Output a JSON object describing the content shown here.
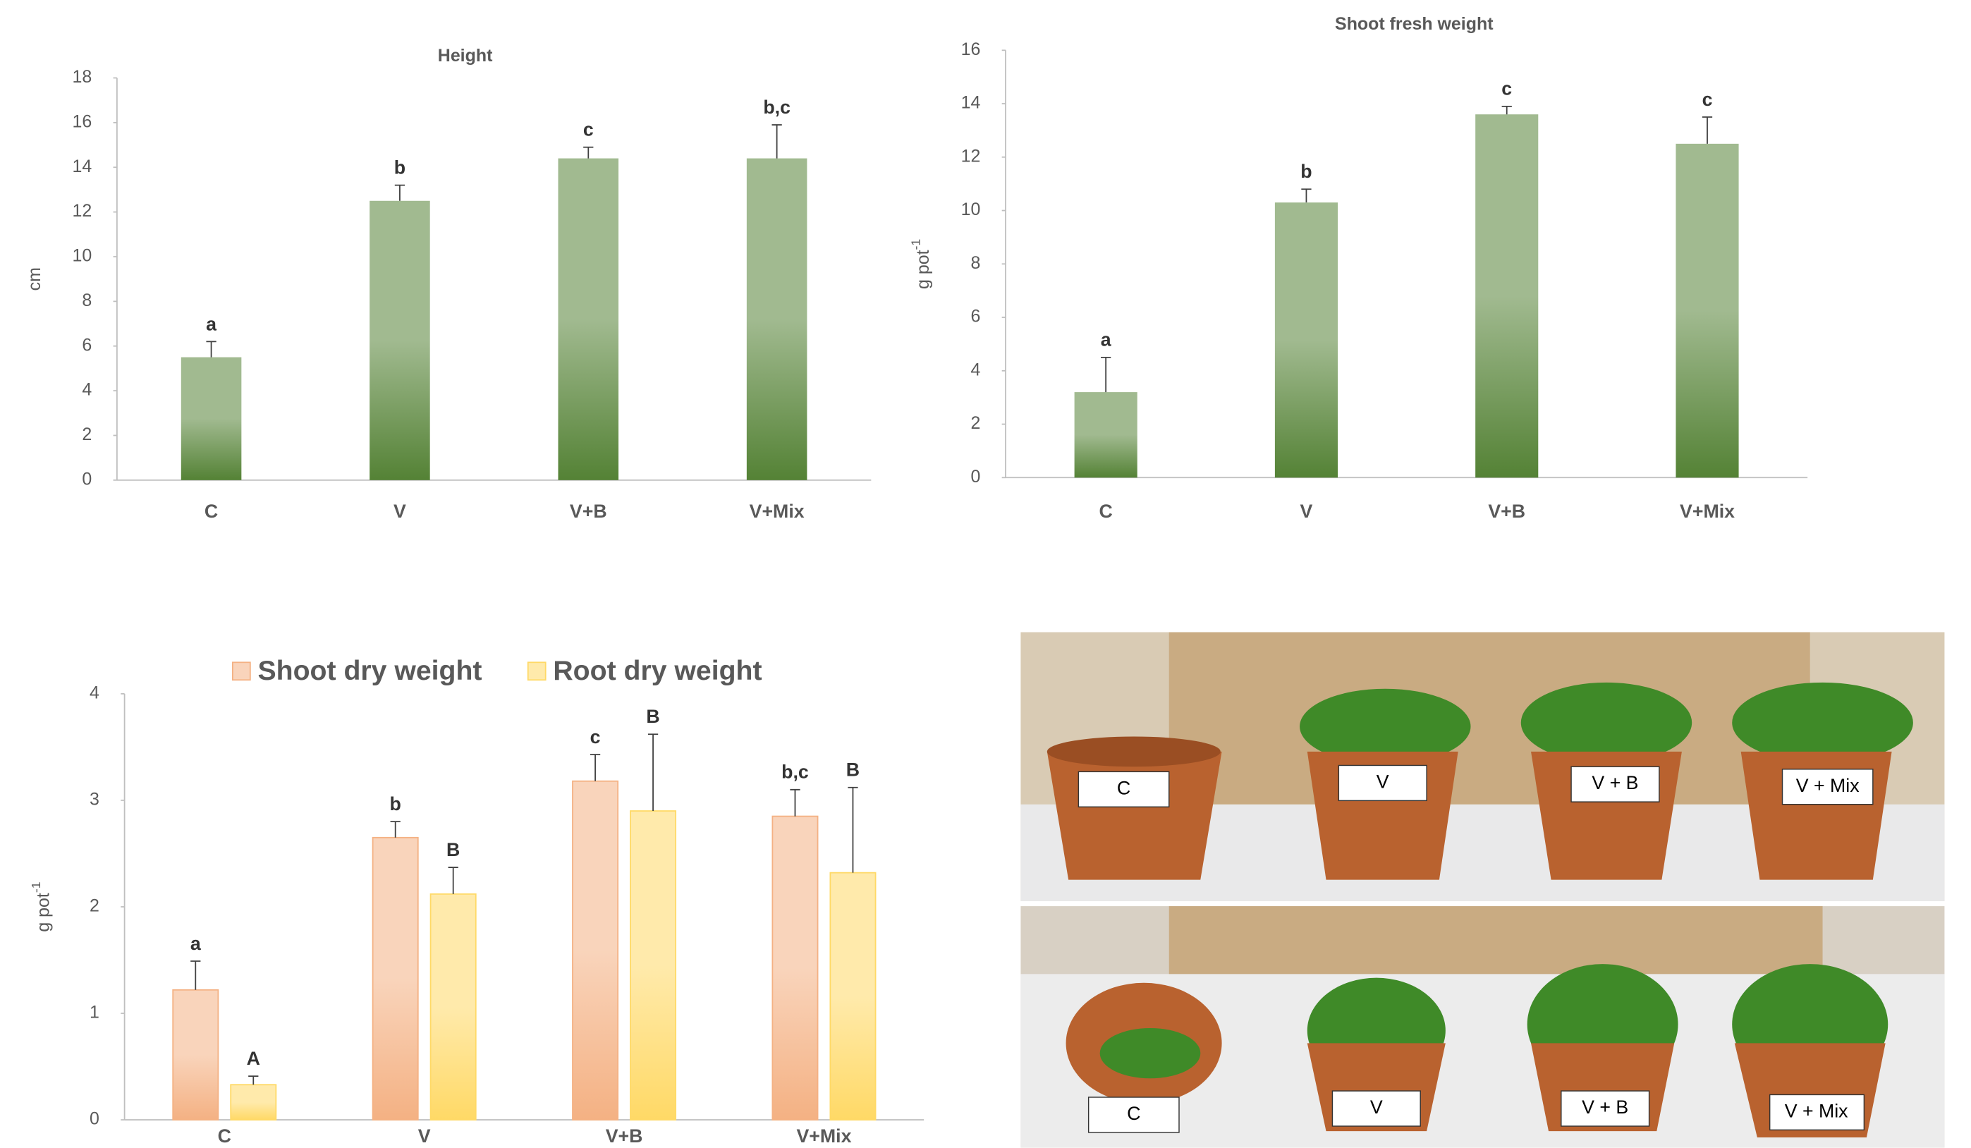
{
  "chart_data": [
    {
      "type": "bar",
      "title": "Height",
      "ylabel": "cm",
      "categories": [
        "C",
        "V",
        "V+B",
        "V+Mix"
      ],
      "series": [
        {
          "color": "#548235",
          "values": [
            5.5,
            12.5,
            14.4,
            14.4
          ],
          "errors": [
            0.7,
            0.7,
            0.5,
            1.5
          ],
          "letters": [
            "a",
            "b",
            "c",
            "b,c"
          ]
        }
      ],
      "ylim": [
        0,
        18
      ],
      "yticks": [
        0,
        2,
        4,
        6,
        8,
        10,
        12,
        14,
        16,
        18
      ]
    },
    {
      "type": "bar",
      "title": "Shoot  fresh weight",
      "ylabel": "g pot",
      "ylabel_sup": "-1",
      "categories": [
        "C",
        "V",
        "V+B",
        "V+Mix"
      ],
      "series": [
        {
          "color": "#548235",
          "values": [
            3.2,
            10.3,
            13.6,
            12.5
          ],
          "errors": [
            1.3,
            0.5,
            0.3,
            1.0
          ],
          "letters": [
            "a",
            "b",
            "c",
            "c"
          ]
        }
      ],
      "ylim": [
        0,
        16
      ],
      "yticks": [
        0,
        2,
        4,
        6,
        8,
        10,
        12,
        14,
        16
      ]
    },
    {
      "type": "bar",
      "ylabel": "g pot",
      "ylabel_sup": "-1",
      "categories": [
        "C",
        "V",
        "V+B",
        "V+Mix"
      ],
      "series": [
        {
          "name": "Shoot dry weight",
          "color": "#f4b183",
          "values": [
            1.22,
            2.65,
            3.18,
            2.85
          ],
          "errors": [
            0.27,
            0.15,
            0.25,
            0.25
          ],
          "letters": [
            "a",
            "b",
            "c",
            "b,c"
          ]
        },
        {
          "name": "Root dry weight",
          "color": "#ffd966",
          "values": [
            0.33,
            2.12,
            2.9,
            2.32
          ],
          "errors": [
            0.08,
            0.25,
            0.72,
            0.8
          ],
          "letters": [
            "A",
            "B",
            "B",
            "B"
          ]
        }
      ],
      "ylim": [
        0,
        4
      ],
      "yticks": [
        0,
        1,
        2,
        3,
        4
      ]
    }
  ],
  "photo": {
    "top_labels": [
      "C",
      "V",
      "V + B",
      "V + Mix"
    ],
    "bottom_labels": [
      "C",
      "V",
      "V + B",
      "V + Mix"
    ]
  }
}
